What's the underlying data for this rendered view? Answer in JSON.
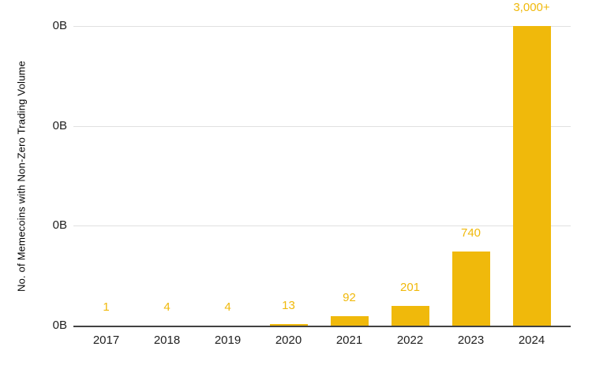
{
  "chart_data": {
    "type": "bar",
    "title": "",
    "categories": [
      "2017",
      "2018",
      "2019",
      "2020",
      "2021",
      "2022",
      "2023",
      "2024"
    ],
    "values": [
      1,
      4,
      4,
      13,
      92,
      201,
      740,
      3000
    ],
    "bar_labels": [
      "1",
      "4",
      "4",
      "13",
      "92",
      "201",
      "740",
      "3,000+"
    ],
    "xlabel": "",
    "ylabel": "No. of Memecoins with Non-Zero Trading Volume",
    "y_tick_labels": [
      "0B",
      "0B",
      "0B",
      "0B"
    ],
    "ylim": [
      0,
      3000
    ],
    "grid": "horizontal",
    "legend": "none",
    "colors": {
      "bar": "#F0B90B",
      "bar_label": "#F0B90B",
      "axis_text": "#1F1F1F",
      "axis_title": "#000000",
      "gridline": "#E0E0E0",
      "axis_line": "#424242",
      "background": "#FFFFFF"
    }
  }
}
